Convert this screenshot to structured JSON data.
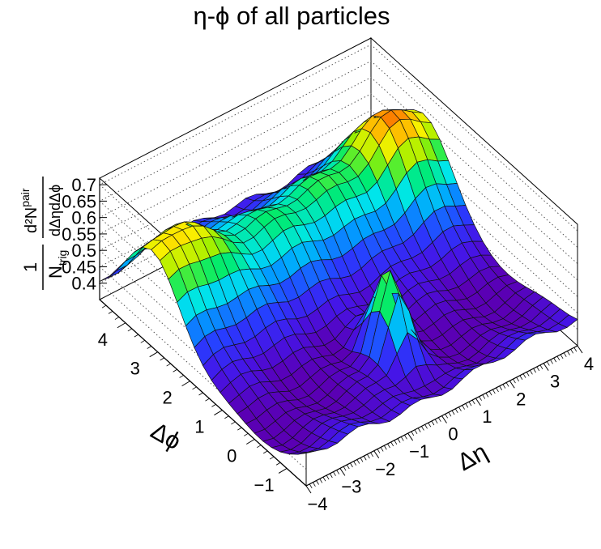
{
  "chart_data": {
    "type": "surface3d",
    "title": "η-ϕ of all particles",
    "xlabel": "Δη",
    "ylabel": "Δϕ",
    "zlabel": {
      "numerator": "1",
      "denominator_prefix": "N",
      "denominator_sub": "trig",
      "fraction_num": "d²N",
      "fraction_num_sup": "pair",
      "fraction_den": "dΔηdΔϕ"
    },
    "xlim": [
      -4,
      4
    ],
    "ylim": [
      -1.6,
      4.8
    ],
    "zlim": [
      0.35,
      0.72
    ],
    "x_ticks": [
      "−4",
      "−3",
      "−2",
      "−1",
      "0",
      "1",
      "2",
      "3",
      "4"
    ],
    "x_tick_values": [
      -4,
      -3,
      -2,
      -1,
      0,
      1,
      2,
      3,
      4
    ],
    "y_ticks": [
      "−1",
      "0",
      "1",
      "2",
      "3",
      "4"
    ],
    "y_tick_values": [
      -1,
      0,
      1,
      2,
      3,
      4
    ],
    "z_ticks": [
      "0.4",
      "0.45",
      "0.5",
      "0.55",
      "0.6",
      "0.65",
      "0.7"
    ],
    "z_tick_values": [
      0.4,
      0.45,
      0.5,
      0.55,
      0.6,
      0.65,
      0.7
    ],
    "grid": true,
    "colormap": "rainbow",
    "features": {
      "near_side_peak": {
        "deta": 0.0,
        "dphi": 0.0,
        "value": 0.64
      },
      "away_side_peaks": [
        {
          "deta": -3.2,
          "dphi": 3.1,
          "value": 0.67
        },
        {
          "deta": 3.2,
          "dphi": 3.1,
          "value": 0.7
        }
      ],
      "ridge_value": 0.57,
      "minimum_value": 0.38
    }
  }
}
